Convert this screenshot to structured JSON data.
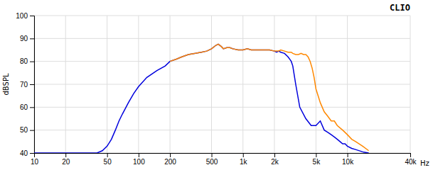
{
  "chart_data": {
    "type": "line",
    "title": "CLIO",
    "xlabel": "Hz",
    "ylabel": "dBSPL",
    "log": "x",
    "grid": true,
    "xlim": [
      10,
      40000
    ],
    "ylim": [
      40,
      100
    ],
    "xticks": [
      10,
      20,
      50,
      100,
      200,
      500,
      {
        "value": 1000,
        "label": "1k"
      },
      {
        "value": 2000,
        "label": "2k"
      },
      {
        "value": 5000,
        "label": "5k"
      },
      {
        "value": 10000,
        "label": "10k"
      },
      {
        "value": 40000,
        "label": "40k"
      }
    ],
    "yticks": [
      40,
      50,
      60,
      70,
      80,
      90,
      100
    ],
    "series": [
      {
        "color": "#0000dd",
        "x": [
          10,
          30,
          40,
          45,
          50,
          55,
          60,
          65,
          70,
          80,
          90,
          100,
          120,
          150,
          180,
          200,
          230,
          260,
          300,
          350,
          400,
          450,
          500,
          550,
          580,
          620,
          650,
          700,
          750,
          800,
          900,
          1000,
          1100,
          1200,
          1400,
          1600,
          1800,
          2000,
          2100,
          2200,
          2300,
          2500,
          2700,
          2800,
          2900,
          3000,
          3200,
          3500,
          4000,
          4500,
          5000,
          5500,
          6000,
          6500,
          7000,
          7500,
          8000,
          8500,
          9000,
          9500,
          10000,
          11000,
          12000,
          14000,
          16000
        ],
        "values": [
          40,
          40,
          40,
          41,
          43,
          46,
          50,
          54,
          57,
          62,
          66,
          69,
          73,
          76,
          78,
          80,
          81,
          82,
          83,
          83.5,
          84,
          84.5,
          85.5,
          87,
          87.5,
          86.5,
          85.5,
          86,
          86,
          85.5,
          85,
          85,
          85.5,
          85,
          85,
          85,
          85,
          84.5,
          84,
          84.5,
          84,
          83.5,
          82,
          81,
          80,
          78,
          70,
          60,
          55,
          52,
          52,
          54,
          50,
          49,
          48,
          47,
          46,
          45,
          44,
          44,
          43,
          42,
          41.5,
          40.5,
          40
        ]
      },
      {
        "color": "#ff8800",
        "x": [
          200,
          230,
          260,
          300,
          350,
          400,
          450,
          500,
          550,
          580,
          620,
          650,
          700,
          750,
          800,
          900,
          1000,
          1100,
          1200,
          1400,
          1600,
          1800,
          2000,
          2100,
          2200,
          2300,
          2500,
          2700,
          2900,
          3000,
          3200,
          3400,
          3600,
          3800,
          4000,
          4200,
          4400,
          4600,
          4800,
          5000,
          5500,
          6000,
          6500,
          7000,
          7500,
          8000,
          9000,
          10000,
          11000,
          12000,
          14000,
          16000
        ],
        "values": [
          80,
          81,
          82,
          83,
          83.5,
          84,
          84.5,
          85.5,
          87,
          87.5,
          86.5,
          85.5,
          86,
          86,
          85.5,
          85,
          85,
          85.5,
          85,
          85,
          85,
          85,
          84.5,
          84.5,
          84.5,
          85,
          84.5,
          84,
          84,
          83.5,
          83,
          83,
          83.5,
          83,
          83,
          82,
          80,
          77,
          73,
          68,
          62,
          58,
          56,
          54,
          54,
          52,
          50,
          48,
          46,
          45,
          43,
          41
        ]
      }
    ]
  }
}
